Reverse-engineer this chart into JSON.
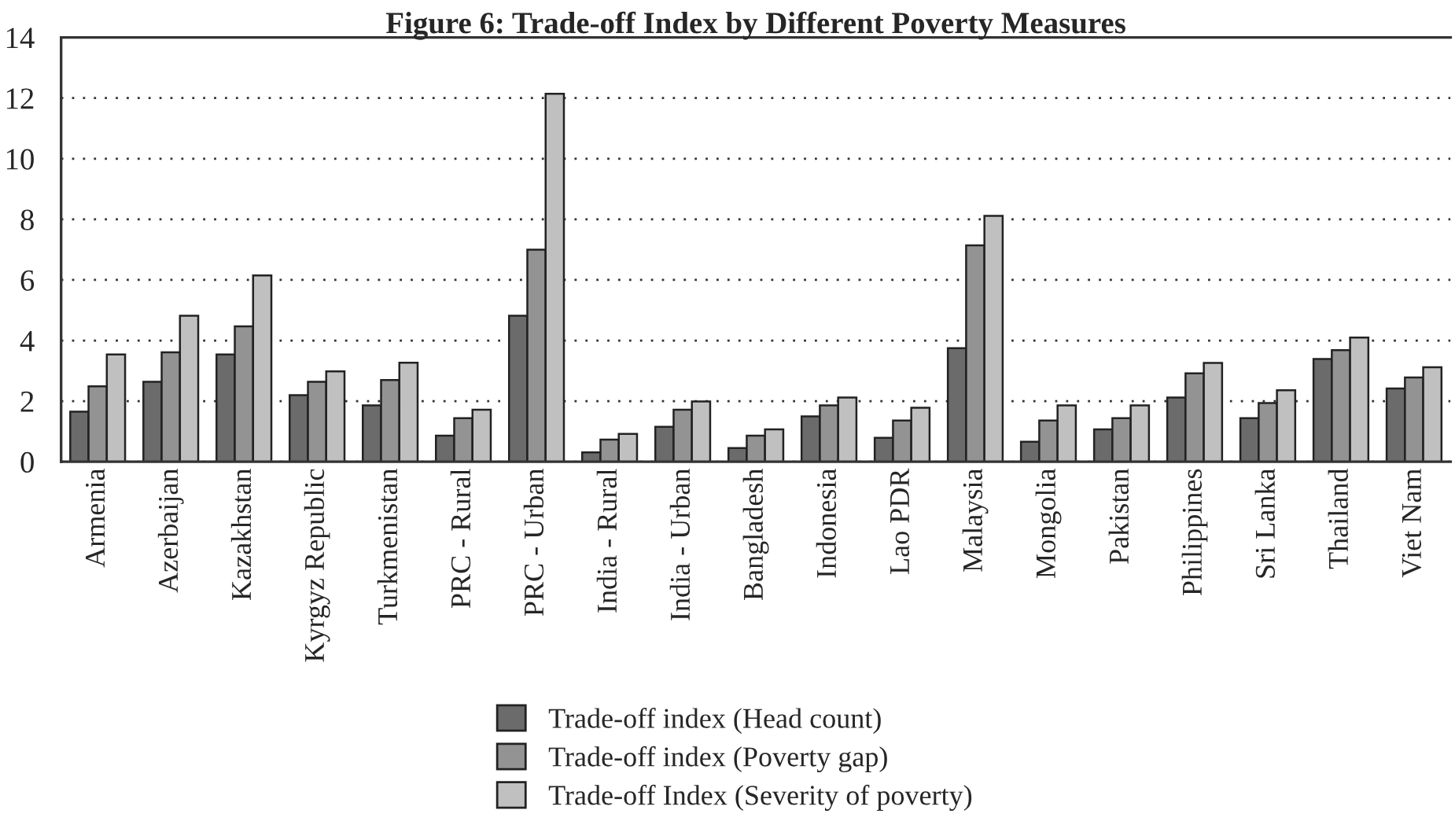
{
  "chart_data": {
    "type": "bar",
    "title": "Figure 6: Trade-off Index by Different Poverty Measures",
    "categories": [
      "Armenia",
      "Azerbaijan",
      "Kazakhstan",
      "Kyrgyz Republic",
      "Turkmenistan",
      "PRC - Rural",
      "PRC - Urban",
      "India - Rural",
      "India - Urban",
      "Bangladesh",
      "Indonesia",
      "Lao PDR",
      "Malaysia",
      "Mongolia",
      "Pakistan",
      "Philippines",
      "Sri Lanka",
      "Thailand",
      "Viet Nam"
    ],
    "series": [
      {
        "name": "Trade-off index (Head count)",
        "color": "#6b6b6b",
        "values": [
          1.65,
          2.64,
          3.54,
          2.2,
          1.86,
          0.86,
          4.82,
          0.31,
          1.15,
          0.45,
          1.5,
          0.79,
          3.75,
          0.66,
          1.07,
          2.12,
          1.44,
          3.39,
          2.42
        ]
      },
      {
        "name": "Trade-off index (Poverty gap)",
        "color": "#939393",
        "values": [
          2.49,
          3.61,
          4.47,
          2.64,
          2.7,
          1.44,
          7.0,
          0.73,
          1.72,
          0.86,
          1.86,
          1.36,
          7.14,
          1.36,
          1.44,
          2.92,
          1.94,
          3.68,
          2.78
        ]
      },
      {
        "name": "Trade-off Index (Severity of poverty)",
        "color": "#c0c0c0",
        "values": [
          3.54,
          4.82,
          6.15,
          2.98,
          3.27,
          1.72,
          12.14,
          0.92,
          1.99,
          1.07,
          2.12,
          1.78,
          8.11,
          1.86,
          1.86,
          3.26,
          2.36,
          4.1,
          3.12
        ]
      }
    ],
    "ylim": [
      0,
      14
    ],
    "yticks": [
      0,
      2,
      4,
      6,
      8,
      10,
      12,
      14
    ],
    "grid": "y",
    "legend": "bottom"
  }
}
